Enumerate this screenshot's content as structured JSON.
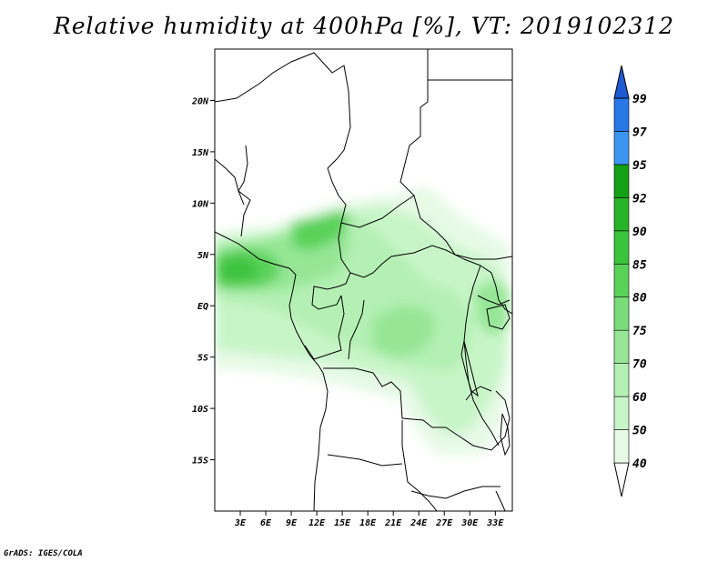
{
  "title": "Relative humidity at 400hPa [%], VT: 2019102312",
  "credit": "GrADS: IGES/COLA",
  "map": {
    "lon_range": [
      0,
      35
    ],
    "lat_range": [
      -20,
      25
    ],
    "lat_ticks": [
      {
        "value": 20,
        "label": "20N"
      },
      {
        "value": 15,
        "label": "15N"
      },
      {
        "value": 10,
        "label": "10N"
      },
      {
        "value": 5,
        "label": "5N"
      },
      {
        "value": 0,
        "label": "EQ"
      },
      {
        "value": -5,
        "label": "5S"
      },
      {
        "value": -10,
        "label": "10S"
      },
      {
        "value": -15,
        "label": "15S"
      }
    ],
    "lon_ticks": [
      {
        "value": 3,
        "label": "3E"
      },
      {
        "value": 6,
        "label": "6E"
      },
      {
        "value": 9,
        "label": "9E"
      },
      {
        "value": 12,
        "label": "12E"
      },
      {
        "value": 15,
        "label": "15E"
      },
      {
        "value": 18,
        "label": "18E"
      },
      {
        "value": 21,
        "label": "21E"
      },
      {
        "value": 24,
        "label": "24E"
      },
      {
        "value": 27,
        "label": "27E"
      },
      {
        "value": 30,
        "label": "30E"
      },
      {
        "value": 33,
        "label": "33E"
      }
    ]
  },
  "colorbar": {
    "levels": [
      "40",
      "50",
      "60",
      "70",
      "75",
      "80",
      "85",
      "90",
      "92",
      "95",
      "97",
      "99"
    ],
    "colors": [
      "#e6fae6",
      "#c8f5c8",
      "#b4f0b4",
      "#96e696",
      "#78dc78",
      "#5ad25a",
      "#3cc33c",
      "#28b428",
      "#14a014",
      "#3c96f0",
      "#2878e6",
      "#1e5ad2"
    ]
  }
}
